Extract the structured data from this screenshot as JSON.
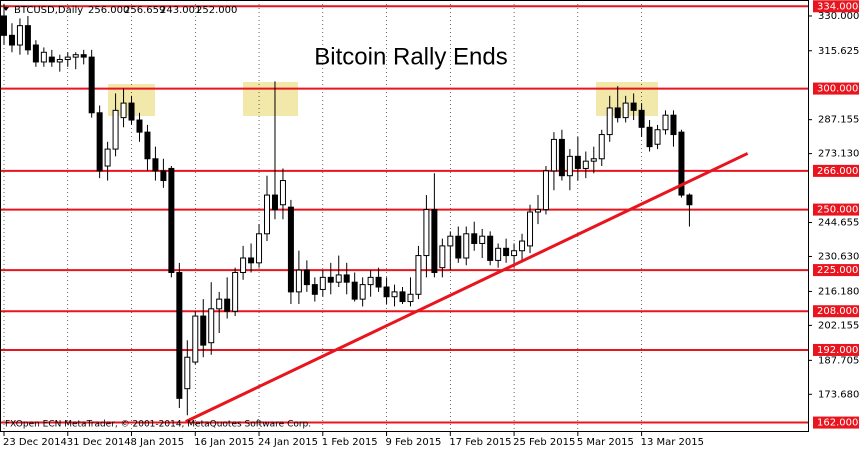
{
  "chart_data": {
    "type": "candlestick",
    "title": "Bitcoin Rally Ends",
    "symbol": "BTCUSD,Daily",
    "header_values": [
      "256.000",
      "256.659",
      "243.001",
      "252.000"
    ],
    "footer": "FXOpen ECN MetaTrader, © 2001-2014, MetaQuotes Software Corp.",
    "categories": [
      "23 Dec 2014",
      null,
      null,
      null,
      null,
      null,
      null,
      null,
      "31 Dec 2014",
      null,
      null,
      null,
      null,
      null,
      null,
      null,
      "8 Jan 2015",
      null,
      null,
      null,
      null,
      null,
      null,
      null,
      "16 Jan 2015",
      null,
      null,
      null,
      null,
      null,
      null,
      null,
      "24 Jan 2015",
      null,
      null,
      null,
      null,
      null,
      null,
      null,
      "1 Feb 2015",
      null,
      null,
      null,
      null,
      null,
      null,
      null,
      "9 Feb 2015",
      null,
      null,
      null,
      null,
      null,
      null,
      null,
      "17 Feb 2015",
      null,
      null,
      null,
      null,
      null,
      null,
      null,
      "25 Feb 2015",
      null,
      null,
      null,
      null,
      null,
      null,
      null,
      "5 Mar 2015",
      null,
      null,
      null,
      null,
      null,
      null,
      null,
      "13 Mar 2015",
      null,
      null,
      null,
      null,
      null,
      null
    ],
    "open": [
      330,
      322,
      318,
      326,
      318,
      311,
      313,
      311,
      312,
      313,
      314,
      313,
      290,
      268,
      275,
      288,
      294,
      287,
      282,
      271,
      266,
      267,
      224,
      176,
      187,
      206,
      195,
      209,
      213,
      208,
      224,
      230,
      228,
      240,
      256,
      252,
      251,
      216,
      225,
      219,
      217,
      222,
      220,
      223,
      220,
      213,
      219,
      222,
      218,
      214,
      216,
      212,
      215,
      231,
      250,
      226,
      235,
      239,
      230,
      240,
      236,
      239,
      229,
      234,
      231,
      233,
      235,
      249,
      250,
      266,
      279,
      264,
      272,
      267,
      270,
      271,
      281,
      292,
      288,
      294,
      291,
      284,
      277,
      283,
      289,
      282,
      256
    ],
    "high": [
      335,
      327,
      329,
      330,
      320,
      317,
      316,
      314,
      315,
      315,
      316,
      316,
      293,
      278,
      298,
      300,
      297,
      290,
      285,
      276,
      271,
      268,
      228,
      196,
      208,
      213,
      220,
      216,
      222,
      226,
      235,
      236,
      244,
      264,
      303,
      267,
      254,
      233,
      229,
      222,
      225,
      228,
      231,
      228,
      224,
      222,
      225,
      226,
      222,
      219,
      218,
      222,
      235,
      256,
      265,
      238,
      241,
      243,
      243,
      245,
      242,
      241,
      236,
      238,
      236,
      240,
      252,
      256,
      268,
      282,
      283,
      275,
      280,
      274,
      276,
      283,
      297,
      301,
      297,
      298,
      294,
      287,
      285,
      291,
      291,
      283,
      256.659
    ],
    "low": [
      318,
      315,
      314,
      314,
      309,
      309,
      309,
      307,
      309,
      308,
      310,
      288,
      263,
      262,
      272,
      284,
      285,
      278,
      266,
      262,
      259,
      222,
      168,
      165,
      186,
      189,
      190,
      199,
      205,
      206,
      221,
      224,
      226,
      237,
      246,
      246,
      211,
      211,
      216,
      212,
      214,
      215,
      218,
      215,
      212,
      210,
      214,
      216,
      211,
      210,
      211,
      210,
      213,
      222,
      222,
      222,
      225,
      228,
      227,
      233,
      230,
      227,
      226,
      228,
      226,
      229,
      232,
      244,
      248,
      258,
      262,
      258,
      262,
      263,
      265,
      268,
      278,
      286,
      286,
      287,
      280,
      274,
      275,
      281,
      276,
      255,
      243.001
    ],
    "close": [
      322,
      318,
      326,
      316,
      311,
      315,
      311,
      312,
      313,
      314,
      313,
      290,
      266,
      275,
      291,
      294,
      287,
      282,
      271,
      266,
      262,
      224,
      172,
      189,
      206,
      194,
      209,
      213,
      208,
      224,
      230,
      228,
      240,
      256,
      250,
      262,
      216,
      225,
      219,
      215,
      222,
      220,
      223,
      220,
      213,
      219,
      222,
      218,
      214,
      216,
      212,
      215,
      231,
      250,
      224,
      235,
      239,
      230,
      240,
      236,
      239,
      229,
      234,
      231,
      233,
      237,
      249,
      250,
      266,
      279,
      264,
      272,
      267,
      270,
      271,
      281,
      292,
      288,
      294,
      291,
      284,
      276,
      283,
      289,
      281,
      256,
      252
    ],
    "ylim": [
      158.1,
      336.6
    ],
    "yticks": [
      {
        "value": 330,
        "label": "330.000"
      },
      {
        "value": 315.625,
        "label": "315.625"
      },
      {
        "value": 287.155,
        "label": "287.155"
      },
      {
        "value": 273.13,
        "label": "273.130"
      },
      {
        "value": 244.655,
        "label": "244.655"
      },
      {
        "value": 230.63,
        "label": "230.630"
      },
      {
        "value": 216.18,
        "label": "216.180"
      },
      {
        "value": 202.155,
        "label": "202.155"
      },
      {
        "value": 187.705,
        "label": "187.705"
      },
      {
        "value": 173.68,
        "label": "173.680"
      }
    ],
    "levels": [
      {
        "value": 334,
        "label": "334.000"
      },
      {
        "value": 300,
        "label": "300.000"
      },
      {
        "value": 266,
        "label": "266.000"
      },
      {
        "value": 250,
        "label": "250.000"
      },
      {
        "value": 225,
        "label": "225.000"
      },
      {
        "value": 208,
        "label": "208.000"
      },
      {
        "value": 192,
        "label": "192.000"
      },
      {
        "value": 162,
        "label": "162.000"
      }
    ],
    "trendline": {
      "x": [
        22.8,
        93.3
      ],
      "y": [
        162.4,
        273.2
      ]
    },
    "colors": {
      "up": "#ffffff",
      "down": "#000000",
      "level": "#e8141e",
      "trend": "#e8141e"
    }
  }
}
